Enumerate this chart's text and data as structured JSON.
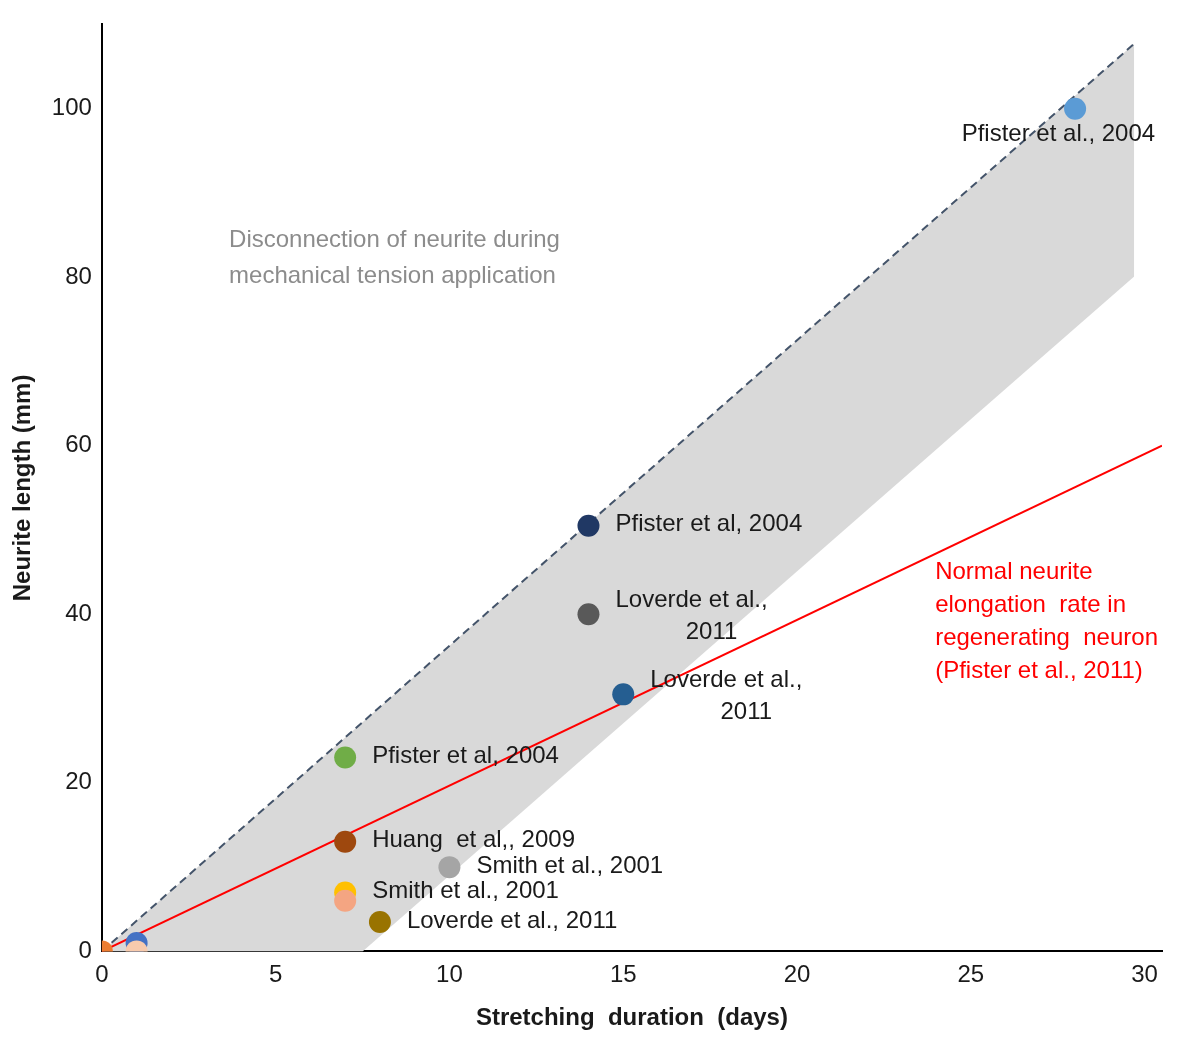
{
  "chart_data": {
    "type": "scatter",
    "xlabel": "Stretching  duration  (days)",
    "ylabel": "Neurite length (mm)",
    "xlim": [
      0,
      30.5
    ],
    "ylim": [
      0,
      110
    ],
    "xticks": [
      0,
      5,
      10,
      15,
      20,
      25,
      30
    ],
    "yticks": [
      0,
      20,
      40,
      60,
      80,
      100
    ],
    "grid": false,
    "legend": false,
    "series": [
      {
        "type": "line",
        "color": "#44546a",
        "line_style": "dashed",
        "marker": "none",
        "x": [
          0,
          7.5,
          29.7
        ],
        "values": [
          0,
          27.2,
          107.7
        ],
        "lower": [
          0,
          0,
          80.1
        ],
        "upper": [
          0,
          27.2,
          107.7
        ]
      },
      {
        "type": "line",
        "name": "Normal neurite\nelongation  rate in\nregenerating  neuron\n(Pfister et al., 2011)",
        "color": "#ff0000",
        "marker": "none",
        "x": [
          0,
          30.5
        ],
        "values": [
          0,
          60
        ]
      },
      {
        "marker": "circle",
        "x": [
          28,
          14,
          14,
          15,
          7,
          7,
          10,
          7,
          7,
          8,
          1,
          1,
          0
        ],
        "values": [
          100,
          50.5,
          40,
          30.5,
          23,
          13,
          10,
          7,
          6,
          3.5,
          1,
          0,
          0
        ],
        "colors": [
          "#5b9bd5",
          "#203864",
          "#595959",
          "#255e91",
          "#70ad47",
          "#9e480e",
          "#a5a5a5",
          "#ffc000",
          "#f4a582",
          "#997300",
          "#4472c4",
          "#f8cbad",
          "#ed7d31"
        ]
      }
    ],
    "annotations": [
      "Disconnection of neurite during\nmechanical tension application",
      {
        "text": "Pfister et al., 2004",
        "x": 28,
        "y": 100
      },
      {
        "text": "Pfister et al, 2004",
        "x": 14,
        "y": 50.5
      },
      {
        "text": "Loverde et al.,\n2011",
        "x": 14,
        "y": 40
      },
      {
        "text": "Loverde et al.,\n2011",
        "x": 15,
        "y": 30.5
      },
      {
        "text": "Pfister et al, 2004",
        "x": 7,
        "y": 23
      },
      {
        "text": "Huang  et al,, 2009",
        "x": 7,
        "y": 13
      },
      {
        "text": "Smith et al., 2001",
        "x": 10,
        "y": 10
      },
      {
        "text": "Smith et al., 2001",
        "x": 7,
        "y": 7
      },
      {
        "text": "Loverde et al., 2011",
        "x": 8,
        "y": 3.5
      }
    ]
  }
}
